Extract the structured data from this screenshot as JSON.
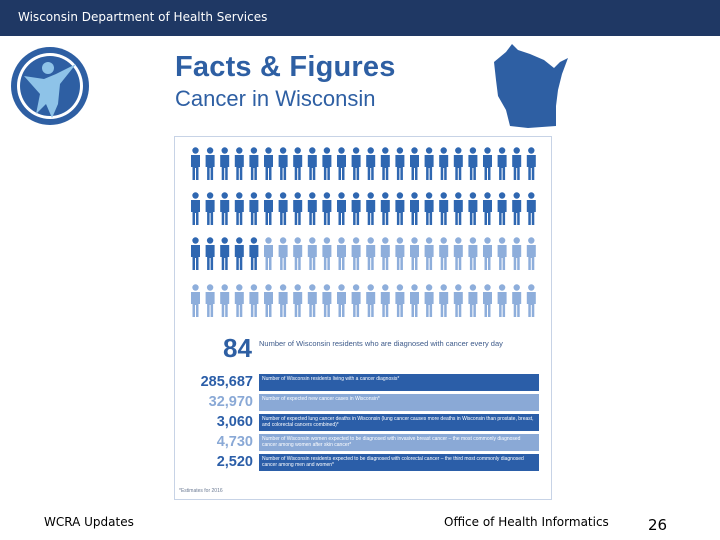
{
  "header": {
    "title": "Wisconsin Department of Health Services"
  },
  "infographic": {
    "title_line1": "Facts & Figures",
    "title_line2": "Cancer in Wisconsin",
    "figure_rows": [
      {
        "dark": 24,
        "light": 0
      },
      {
        "dark": 24,
        "light": 0
      },
      {
        "dark": 5,
        "light": 19
      },
      {
        "dark": 0,
        "light": 24
      }
    ],
    "headline_number": "84",
    "headline_text": "Number of Wisconsin residents who are diagnosed with cancer every day",
    "stats": [
      {
        "value": "285,687",
        "text": "Number of Wisconsin residents living with a cancer diagnosis*"
      },
      {
        "value": "32,970",
        "text": "Number of expected new cancer cases in Wisconsin*"
      },
      {
        "value": "3,060",
        "text": "Number of expected lung cancer deaths in Wisconsin (lung cancer causes more deaths in Wisconsin than prostate, breast, and colorectal cancers combined)*"
      },
      {
        "value": "4,730",
        "text": "Number of Wisconsin women expected to be diagnosed with invasive breast cancer – the most commonly diagnosed cancer among women after skin cancer*"
      },
      {
        "value": "2,520",
        "text": "Number of Wisconsin residents expected to be diagnosed with colorectal cancer – the third most commonly diagnosed cancer among men and women*"
      }
    ],
    "footnote": "*Estimates for 2016"
  },
  "footer": {
    "left": "WCRA Updates",
    "center": "Office of Health Informatics",
    "page": "26"
  },
  "colors": {
    "header_bar": "#1f3864",
    "brand_blue": "#2e5fa3",
    "figure_dark": "#2f67b1",
    "figure_light": "#8eaedb",
    "bar_dark": "#2b5ea8",
    "bar_light": "#8aa9d6"
  }
}
